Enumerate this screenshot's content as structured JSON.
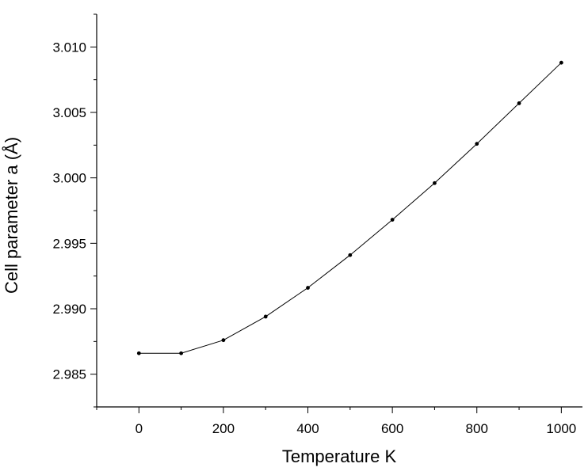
{
  "chart_data": {
    "type": "line",
    "xlabel": "Temperature K",
    "ylabel": "Cell parameter a (Å)",
    "xlim": [
      -100,
      1050
    ],
    "ylim": [
      2.9825,
      3.0125
    ],
    "x_ticks": [
      0,
      200,
      400,
      600,
      800,
      1000
    ],
    "x_tick_labels": [
      "0",
      "200",
      "400",
      "600",
      "800",
      "1000"
    ],
    "y_ticks": [
      2.985,
      2.99,
      2.995,
      3.0,
      3.005,
      3.01
    ],
    "y_tick_labels": [
      "2.985",
      "2.990",
      "2.995",
      "3.000",
      "3.005",
      "3.010"
    ],
    "grid": false,
    "series": [
      {
        "x": [
          0,
          100,
          200,
          300,
          400,
          500,
          600,
          700,
          800,
          900,
          1000
        ],
        "y": [
          2.9866,
          2.9866,
          2.9876,
          2.9894,
          2.9916,
          2.9941,
          2.9968,
          2.9996,
          3.0026,
          3.0057,
          3.0088
        ],
        "color": "#000000",
        "marker": "circle"
      }
    ]
  }
}
